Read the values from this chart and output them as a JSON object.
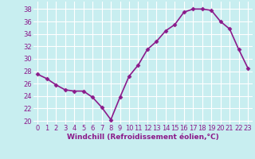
{
  "x": [
    0,
    1,
    2,
    3,
    4,
    5,
    6,
    7,
    8,
    9,
    10,
    11,
    12,
    13,
    14,
    15,
    16,
    17,
    18,
    19,
    20,
    21,
    22,
    23
  ],
  "y": [
    27.5,
    26.8,
    25.8,
    25.0,
    24.8,
    24.8,
    23.8,
    22.2,
    20.2,
    23.8,
    27.2,
    29.0,
    31.5,
    32.8,
    34.5,
    35.5,
    37.5,
    38.0,
    38.0,
    37.8,
    36.0,
    34.8,
    31.5,
    28.5
  ],
  "line_color": "#8b1a8b",
  "marker": "D",
  "markersize": 2.5,
  "bg_color": "#c8eef0",
  "grid_color": "#ffffff",
  "xlabel": "Windchill (Refroidissement éolien,°C)",
  "ylabel_ticks": [
    20,
    22,
    24,
    26,
    28,
    30,
    32,
    34,
    36,
    38
  ],
  "xlim": [
    -0.5,
    23.5
  ],
  "ylim": [
    19.5,
    39.2
  ],
  "xtick_labels": [
    "0",
    "1",
    "2",
    "3",
    "4",
    "5",
    "6",
    "7",
    "8",
    "9",
    "10",
    "11",
    "12",
    "13",
    "14",
    "15",
    "16",
    "17",
    "18",
    "19",
    "20",
    "21",
    "22",
    "23"
  ],
  "linewidth": 1.2,
  "xlabel_fontsize": 6.5,
  "tick_fontsize": 6.0
}
